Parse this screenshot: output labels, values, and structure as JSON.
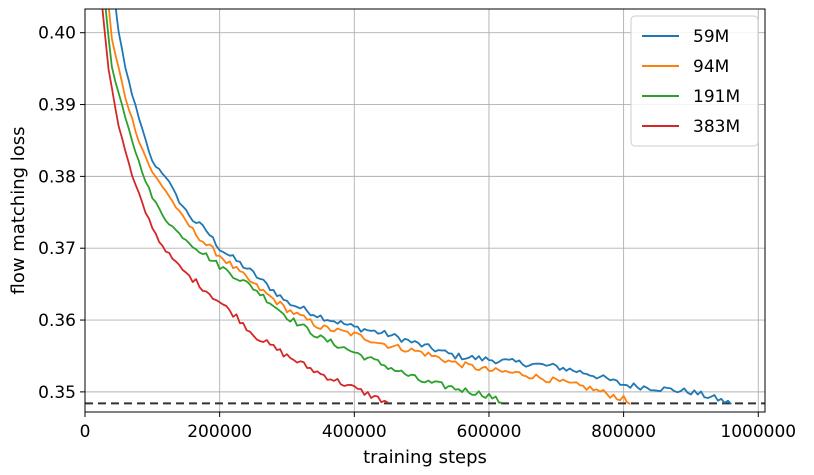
{
  "chart_data": {
    "type": "line",
    "title": "",
    "xlabel": "training steps",
    "ylabel": "flow matching loss",
    "xlim": [
      0,
      1010000
    ],
    "ylim": [
      0.3472,
      0.4033
    ],
    "x_ticks": [
      0,
      200000,
      400000,
      600000,
      800000,
      1000000
    ],
    "x_tick_labels": [
      "0",
      "200000",
      "400000",
      "600000",
      "800000",
      "1000000"
    ],
    "y_ticks": [
      0.35,
      0.36,
      0.37,
      0.38,
      0.39,
      0.4
    ],
    "y_tick_labels": [
      "0.35",
      "0.36",
      "0.37",
      "0.38",
      "0.39",
      "0.40"
    ],
    "grid": true,
    "legend_position": "top-right",
    "reference_line": {
      "y": 0.3484,
      "style": "dashed",
      "color": "#333333"
    },
    "series": [
      {
        "name": "59M",
        "color": "#1f77b4",
        "points": [
          [
            45000,
            0.404
          ],
          [
            50000,
            0.4
          ],
          [
            60000,
            0.395
          ],
          [
            80000,
            0.388
          ],
          [
            100000,
            0.382
          ],
          [
            120000,
            0.38
          ],
          [
            140000,
            0.3765
          ],
          [
            160000,
            0.374
          ],
          [
            180000,
            0.3725
          ],
          [
            200000,
            0.37
          ],
          [
            250000,
            0.3665
          ],
          [
            300000,
            0.3625
          ],
          [
            350000,
            0.3605
          ],
          [
            400000,
            0.359
          ],
          [
            450000,
            0.358
          ],
          [
            500000,
            0.3565
          ],
          [
            550000,
            0.355
          ],
          [
            600000,
            0.3545
          ],
          [
            650000,
            0.354
          ],
          [
            700000,
            0.3535
          ],
          [
            750000,
            0.3525
          ],
          [
            800000,
            0.351
          ],
          [
            850000,
            0.3505
          ],
          [
            900000,
            0.35
          ],
          [
            940000,
            0.349
          ],
          [
            960000,
            0.3483
          ]
        ]
      },
      {
        "name": "94M",
        "color": "#ff7f0e",
        "points": [
          [
            35000,
            0.404
          ],
          [
            40000,
            0.399
          ],
          [
            60000,
            0.391
          ],
          [
            80000,
            0.385
          ],
          [
            100000,
            0.3805
          ],
          [
            120000,
            0.378
          ],
          [
            140000,
            0.375
          ],
          [
            160000,
            0.3725
          ],
          [
            180000,
            0.3705
          ],
          [
            200000,
            0.369
          ],
          [
            250000,
            0.365
          ],
          [
            300000,
            0.3615
          ],
          [
            350000,
            0.359
          ],
          [
            400000,
            0.358
          ],
          [
            450000,
            0.3565
          ],
          [
            500000,
            0.3555
          ],
          [
            550000,
            0.354
          ],
          [
            600000,
            0.353
          ],
          [
            650000,
            0.3525
          ],
          [
            700000,
            0.3515
          ],
          [
            750000,
            0.3505
          ],
          [
            800000,
            0.349
          ],
          [
            810000,
            0.3483
          ]
        ]
      },
      {
        "name": "191M",
        "color": "#2ca02c",
        "points": [
          [
            30000,
            0.404
          ],
          [
            40000,
            0.395
          ],
          [
            60000,
            0.388
          ],
          [
            80000,
            0.382
          ],
          [
            100000,
            0.377
          ],
          [
            120000,
            0.374
          ],
          [
            140000,
            0.372
          ],
          [
            160000,
            0.3705
          ],
          [
            180000,
            0.369
          ],
          [
            200000,
            0.3675
          ],
          [
            250000,
            0.3645
          ],
          [
            300000,
            0.3605
          ],
          [
            350000,
            0.3575
          ],
          [
            400000,
            0.3555
          ],
          [
            450000,
            0.3535
          ],
          [
            500000,
            0.3515
          ],
          [
            550000,
            0.3505
          ],
          [
            600000,
            0.3495
          ],
          [
            620000,
            0.3485
          ]
        ]
      },
      {
        "name": "383M",
        "color": "#d62728",
        "points": [
          [
            25000,
            0.404
          ],
          [
            35000,
            0.395
          ],
          [
            50000,
            0.387
          ],
          [
            70000,
            0.38
          ],
          [
            90000,
            0.375
          ],
          [
            110000,
            0.371
          ],
          [
            130000,
            0.3685
          ],
          [
            150000,
            0.3665
          ],
          [
            175000,
            0.3645
          ],
          [
            200000,
            0.3625
          ],
          [
            225000,
            0.3605
          ],
          [
            250000,
            0.358
          ],
          [
            300000,
            0.355
          ],
          [
            350000,
            0.3525
          ],
          [
            400000,
            0.3505
          ],
          [
            425000,
            0.3495
          ],
          [
            450000,
            0.3485
          ]
        ]
      }
    ]
  }
}
